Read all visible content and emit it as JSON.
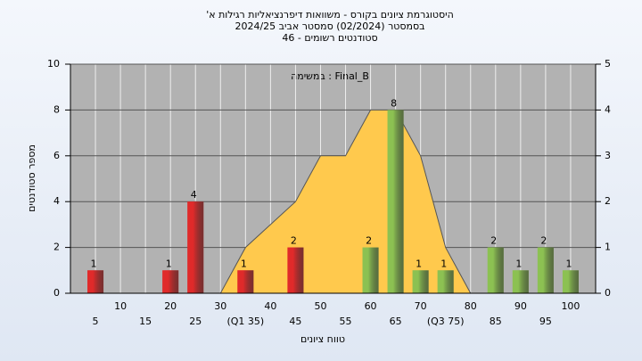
{
  "chart_data": {
    "type": "bar",
    "title": [
      "היסטוגרמת ציונים בקורס - משוואות דיפרנציאליות רגילות א'",
      "בסמסטר (02/2024) סמסטר אביב 2024/25",
      "סטודנטים רשומים - 46"
    ],
    "annotation": "במשימה : Final_B",
    "ylabel": "מספר סטודנטים",
    "xlabel": "טווח ציונים",
    "x": [
      5,
      20,
      25,
      35,
      45,
      60,
      65,
      70,
      75,
      85,
      90,
      95,
      100
    ],
    "values": [
      1,
      1,
      4,
      1,
      2,
      2,
      8,
      1,
      1,
      2,
      1,
      2,
      1
    ],
    "colors": [
      "#e02a2a",
      "#e02a2a",
      "#e02a2a",
      "#e02a2a",
      "#e02a2a",
      "#8cc152",
      "#8cc152",
      "#8cc152",
      "#8cc152",
      "#8cc152",
      "#8cc152",
      "#8cc152",
      "#8cc152"
    ],
    "area": {
      "color": "#ffc94d",
      "x": [
        30,
        35,
        45,
        50,
        55,
        60,
        65,
        70,
        75,
        80
      ],
      "values": [
        0,
        2,
        4,
        6,
        6,
        8,
        8,
        6,
        2,
        0
      ]
    },
    "xlim": [
      0,
      105
    ],
    "xticks": [
      5,
      10,
      15,
      20,
      25,
      30,
      {
        "value": 35,
        "label": "(Q1 35)"
      },
      40,
      45,
      50,
      55,
      60,
      65,
      70,
      {
        "value": 75,
        "label": "(Q3 75)"
      },
      80,
      85,
      90,
      95,
      100
    ],
    "ylim": [
      0,
      10
    ],
    "yticks": [
      0,
      2,
      4,
      6,
      8,
      10
    ],
    "y2lim": [
      0,
      5
    ],
    "y2ticks": [
      0,
      1,
      2,
      3,
      4,
      5
    ],
    "grid": true
  }
}
